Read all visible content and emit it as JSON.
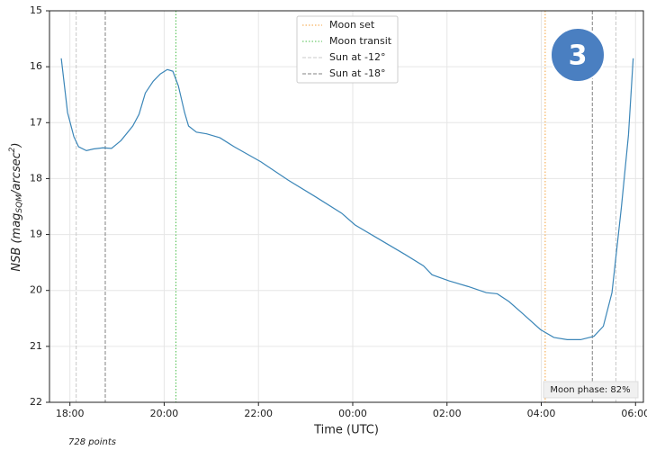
{
  "chart_data": {
    "type": "line",
    "xlabel": "Time (UTC)",
    "ylabel": {
      "prefix": "NSB (mag",
      "sub": "SQM",
      "mid": "/arcsec",
      "sup": "2",
      "suffix": ")"
    },
    "x": [
      "17:49",
      "17:57",
      "18:05",
      "18:11",
      "18:21",
      "18:30",
      "18:42",
      "18:53",
      "19:05",
      "19:20",
      "19:28",
      "19:36",
      "19:46",
      "19:55",
      "20:04",
      "20:11",
      "20:18",
      "20:26",
      "20:31",
      "20:41",
      "20:54",
      "21:11",
      "21:29",
      "22:03",
      "22:38",
      "23:12",
      "23:46",
      "00:03",
      "00:32",
      "01:07",
      "01:30",
      "01:41",
      "02:03",
      "02:27",
      "02:50",
      "03:04",
      "03:19",
      "03:36",
      "03:59",
      "04:16",
      "04:33",
      "04:50",
      "05:07",
      "05:19",
      "05:30",
      "05:42",
      "05:51",
      "05:57"
    ],
    "series": [
      {
        "color": "#3b86b8",
        "values": [
          15.85,
          16.82,
          17.25,
          17.43,
          17.5,
          17.47,
          17.45,
          17.46,
          17.32,
          17.06,
          16.85,
          16.47,
          16.26,
          16.13,
          16.05,
          16.08,
          16.34,
          16.82,
          17.06,
          17.17,
          17.2,
          17.27,
          17.43,
          17.7,
          18.03,
          18.32,
          18.62,
          18.83,
          19.07,
          19.36,
          19.56,
          19.72,
          19.83,
          19.93,
          20.04,
          20.06,
          20.2,
          20.41,
          20.7,
          20.84,
          20.88,
          20.88,
          20.82,
          20.64,
          20.04,
          18.51,
          17.22,
          15.85
        ]
      }
    ],
    "vlines": [
      {
        "name": "Moon set",
        "color": "#f5a23c",
        "style": "dotted",
        "x": [
          "04:05"
        ]
      },
      {
        "name": "Moon transit",
        "color": "#4cbf4c",
        "style": "dotted",
        "x": [
          "20:15"
        ]
      },
      {
        "name": "Sun at -12°",
        "color": "#c8c8c8",
        "style": "dashed",
        "x": [
          "18:08",
          "05:35"
        ]
      },
      {
        "name": "Sun at -18°",
        "color": "#808080",
        "style": "dashed",
        "x": [
          "18:45",
          "05:05"
        ]
      }
    ],
    "xlim": [
      "17:34",
      "06:10"
    ],
    "xticks": [
      "18:00",
      "20:00",
      "22:00",
      "00:00",
      "02:00",
      "04:00",
      "06:00"
    ],
    "ylim": [
      15,
      22
    ],
    "y_inverted": true,
    "yticks": [
      15,
      16,
      17,
      18,
      19,
      20,
      21,
      22
    ],
    "grid": true,
    "legend": "upper center",
    "annotation": "Moon phase: 82%",
    "footnote": "728 points",
    "badge": "3"
  }
}
